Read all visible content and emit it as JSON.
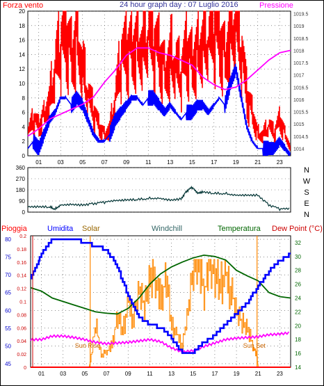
{
  "colors": {
    "wind": "#ff0000",
    "gust": "#0000ff",
    "pressure": "#ff00ff",
    "direction": "#003333",
    "humidity": "#0000ff",
    "solar": "#ff8800",
    "solar_label": "#996600",
    "windchill": "#336666",
    "temperature": "#006600",
    "dewpoint": "#cc0000",
    "rain": "#ff0000",
    "rain_axis": "#cc0000",
    "axis": "#000000",
    "grid": "#444444"
  },
  "page": {
    "header_left": "Forza vento",
    "header_title": "24 hour graph day : 07 Luglio 2016",
    "header_right": "Pressione",
    "compass": [
      "N",
      "W",
      "S",
      "E",
      "N"
    ],
    "bottom_titles": [
      "Pioggia",
      "Umidita",
      "Solar",
      "Windchill",
      "Temperatura",
      "Dew Point (°C)"
    ],
    "sun_rise_label": "Sun Rise",
    "sun_set_label": "Sun Set"
  },
  "chart_data": [
    {
      "type": "line",
      "name": "wind",
      "x_ticks": [
        "01",
        "03",
        "05",
        "07",
        "09",
        "11",
        "13",
        "15",
        "17",
        "19",
        "21",
        "23"
      ],
      "y_left_ticks": [
        "0",
        "2",
        "4",
        "6",
        "8",
        "10",
        "12",
        "14",
        "16",
        "18",
        "20"
      ],
      "y_right_ticks": [
        "1014",
        "1014.5",
        "1015",
        "1015.5",
        "1016",
        "1016.5",
        "1017",
        "1017.5",
        "1018",
        "1018.5",
        "1019",
        "1019.5"
      ],
      "ylim_left": [
        0,
        20
      ],
      "ylim_right": [
        1013.7,
        1019.6
      ],
      "xlim": [
        0,
        24
      ],
      "grid": true,
      "series": [
        {
          "name": "Forza vento",
          "axis": "left",
          "x": [
            0,
            0.5,
            1,
            1.5,
            2,
            2.5,
            3,
            3.5,
            4,
            4.5,
            5,
            5.5,
            6,
            6.5,
            7,
            7.5,
            8,
            8.5,
            9,
            9.5,
            10,
            10.5,
            11,
            11.5,
            12,
            12.5,
            13,
            13.5,
            14,
            14.5,
            15,
            15.5,
            16,
            16.5,
            17,
            17.5,
            18,
            18.5,
            19,
            19.5,
            20,
            20.5,
            21,
            21.5,
            22,
            22.5,
            23,
            23.5,
            24
          ],
          "values": [
            3,
            5,
            4,
            6,
            8,
            12,
            15,
            16,
            14,
            17,
            12,
            8,
            6,
            4,
            3,
            4,
            8,
            13,
            14,
            15,
            16,
            15,
            16,
            15,
            14,
            12,
            14,
            12,
            11,
            14,
            13,
            15,
            16,
            15,
            17,
            16,
            14,
            18,
            18,
            14,
            8,
            6,
            3,
            3,
            4,
            3,
            5,
            3,
            1
          ]
        },
        {
          "name": "Wind gust",
          "axis": "left",
          "x": [
            0,
            0.5,
            1,
            1.5,
            2,
            2.5,
            3,
            3.5,
            4,
            4.5,
            5,
            5.5,
            6,
            6.5,
            7,
            7.5,
            8,
            8.5,
            9,
            9.5,
            10,
            10.5,
            11,
            11.5,
            12,
            12.5,
            13,
            13.5,
            14,
            14.5,
            15,
            15.5,
            16,
            16.5,
            17,
            17.5,
            18,
            18.5,
            19,
            19.5,
            20,
            20.5,
            21,
            21.5,
            22,
            22.5,
            23,
            23.5,
            24
          ],
          "values": [
            1,
            2,
            1,
            3,
            5,
            6,
            8,
            8,
            7,
            8,
            7,
            5,
            3,
            2,
            2,
            3,
            5,
            6,
            7,
            8,
            8,
            7,
            8,
            8,
            7,
            6,
            7,
            6,
            5,
            6,
            6,
            7,
            7,
            6,
            7,
            8,
            7,
            10,
            12,
            8,
            4,
            2,
            1,
            1,
            1,
            1,
            2,
            1,
            0
          ]
        },
        {
          "name": "Pressione",
          "axis": "right",
          "x": [
            0,
            1,
            2,
            3,
            4,
            5,
            6,
            7,
            8,
            9,
            10,
            11,
            12,
            13,
            14,
            15,
            16,
            17,
            18,
            19,
            20,
            21,
            22,
            23,
            24
          ],
          "values": [
            1014.5,
            1014.8,
            1015.2,
            1015.4,
            1015.6,
            1015.8,
            1016.1,
            1016.7,
            1017.2,
            1017.8,
            1018.1,
            1018.1,
            1017.9,
            1017.8,
            1017.6,
            1017.4,
            1016.9,
            1016.6,
            1016.4,
            1016.5,
            1016.8,
            1017.2,
            1017.6,
            1017.9,
            1018.0
          ]
        }
      ]
    },
    {
      "type": "line",
      "name": "wind-direction",
      "xlim": [
        0,
        24
      ],
      "y_ticks": [
        "0",
        "90",
        "180",
        "270",
        "360"
      ],
      "ylim": [
        0,
        360
      ],
      "grid": true,
      "series": [
        {
          "name": "Wind direction",
          "x": [
            0,
            1,
            2,
            2.5,
            3,
            4,
            5,
            6,
            7,
            8,
            9,
            10,
            11,
            12,
            13,
            14,
            14.5,
            15,
            15.5,
            16,
            17,
            18,
            19,
            20,
            21,
            22,
            23,
            24
          ],
          "values": [
            40,
            40,
            40,
            25,
            60,
            65,
            60,
            70,
            80,
            90,
            95,
            100,
            110,
            115,
            100,
            110,
            170,
            200,
            150,
            160,
            150,
            150,
            140,
            140,
            140,
            60,
            25,
            25
          ]
        }
      ]
    },
    {
      "type": "line",
      "name": "bottom",
      "xlim": [
        0,
        24
      ],
      "x_ticks": [
        "01",
        "03",
        "05",
        "07",
        "09",
        "11",
        "13",
        "15",
        "17",
        "19",
        "21",
        "23"
      ],
      "y_rain_ticks": [
        "0",
        "0.02",
        "0.04",
        "0.06",
        "0.08",
        "0.1",
        "0.12",
        "0.14",
        "0.16",
        "0.18",
        "0.2"
      ],
      "y_hum_ticks": [
        "45",
        "50",
        "55",
        "60",
        "65",
        "70",
        "75",
        "80"
      ],
      "y_temp_ticks": [
        "14",
        "16",
        "18",
        "20",
        "22",
        "24",
        "26",
        "28",
        "30",
        "32"
      ],
      "ylim_rain": [
        0,
        0.2
      ],
      "ylim_hum": [
        44,
        81
      ],
      "ylim_temp": [
        14,
        33
      ],
      "grid": true,
      "sun_rise": 5.5,
      "sun_set": 20.9,
      "series": [
        {
          "name": "Umidita",
          "axis": "hum",
          "x": [
            0,
            0.5,
            1,
            1.5,
            2,
            3,
            4,
            5,
            6,
            7,
            8,
            9,
            10,
            11,
            12,
            13,
            14,
            15,
            16,
            17,
            18,
            19,
            20,
            21,
            22,
            23,
            24
          ],
          "values": [
            69,
            72,
            76,
            78,
            80,
            80,
            80,
            79,
            78,
            77,
            72,
            64,
            58,
            56,
            55,
            52,
            48,
            48,
            51,
            53,
            56,
            59,
            62,
            67,
            71,
            74,
            76
          ]
        },
        {
          "name": "Temperatura",
          "axis": "temp",
          "x": [
            0,
            1,
            2,
            3,
            4,
            5,
            6,
            7,
            8,
            9,
            10,
            11,
            12,
            13,
            14,
            15,
            16,
            17,
            18,
            19,
            20,
            21,
            22,
            23,
            24
          ],
          "values": [
            25.5,
            25,
            24,
            23.5,
            23,
            22.5,
            22,
            21.8,
            21.7,
            22.5,
            24,
            26,
            27.5,
            28.5,
            29.2,
            29.8,
            30.2,
            30.0,
            29.5,
            28.0,
            27.2,
            26.5,
            24.8,
            24.2,
            24.0
          ]
        },
        {
          "name": "Windchill",
          "axis": "temp",
          "x": [
            0,
            1,
            2,
            3,
            4,
            5,
            6,
            7,
            8,
            9,
            10,
            11,
            12,
            13,
            14,
            15,
            16,
            17,
            18,
            19,
            20,
            21,
            22,
            23,
            24
          ],
          "values": [
            25.5,
            25,
            24,
            23.5,
            23,
            22.5,
            22,
            21.8,
            21.7,
            22.5,
            24,
            26,
            27.5,
            28.5,
            29.2,
            29.8,
            30.2,
            30.0,
            29.5,
            28.0,
            27.2,
            26.5,
            24.8,
            24.2,
            24.0
          ]
        },
        {
          "name": "Dew Point",
          "axis": "temp",
          "x": [
            0,
            1,
            2,
            3,
            4,
            5,
            6,
            7,
            8,
            9,
            10,
            11,
            12,
            13,
            14,
            15,
            16,
            17,
            18,
            19,
            20,
            21,
            22,
            23,
            24
          ],
          "values": [
            18,
            18,
            18.5,
            18.5,
            18.3,
            18,
            17.6,
            17.4,
            17.5,
            17.6,
            17.8,
            18,
            17.7,
            16.8,
            16.2,
            16.4,
            17,
            17.5,
            18,
            18.2,
            18.3,
            18.4,
            18.7,
            18.8,
            19
          ]
        },
        {
          "name": "Solar",
          "axis": "solar",
          "x": [
            0,
            5.4,
            5.5,
            6,
            6.5,
            7,
            7.5,
            8,
            8.5,
            9,
            9.5,
            10,
            10.5,
            11,
            11.5,
            12,
            12.5,
            13,
            13.5,
            14,
            14.5,
            15,
            15.5,
            16,
            16.5,
            17,
            17.5,
            18,
            18.5,
            19,
            19.5,
            20,
            20.5,
            20.9,
            21,
            24
          ],
          "values": [
            0,
            0,
            0.05,
            0.4,
            0.1,
            0.15,
            0.2,
            0.5,
            0.35,
            0.6,
            0.45,
            0.7,
            0.55,
            0.8,
            0.85,
            0.6,
            0.9,
            0.4,
            0.3,
            0.2,
            0.5,
            0.9,
            0.95,
            0.7,
            1.0,
            0.9,
            0.8,
            0.85,
            0.7,
            0.5,
            0.4,
            0.35,
            0.2,
            0.1,
            0,
            0
          ]
        },
        {
          "name": "Pioggia",
          "axis": "rain",
          "x": [
            0,
            24
          ],
          "values": [
            0,
            0
          ]
        }
      ]
    }
  ]
}
